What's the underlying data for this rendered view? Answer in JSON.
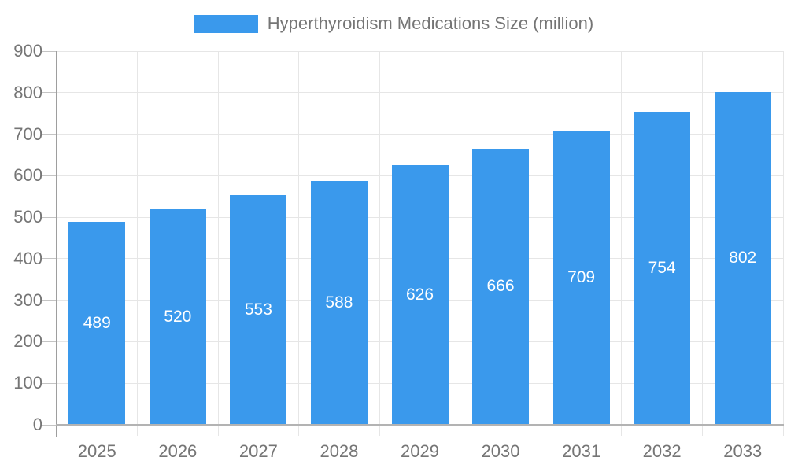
{
  "legend": {
    "label": "Hyperthyroidism Medications Size (million)"
  },
  "chart_data": {
    "type": "bar",
    "title": "Hyperthyroidism Medications Size (million)",
    "categories": [
      "2025",
      "2026",
      "2027",
      "2028",
      "2029",
      "2030",
      "2031",
      "2032",
      "2033"
    ],
    "values": [
      489,
      520,
      553,
      588,
      626,
      666,
      709,
      754,
      802
    ],
    "xlabel": "",
    "ylabel": "",
    "ylim": [
      0,
      900
    ],
    "ytick_step": 100,
    "yticks": [
      "0",
      "100",
      "200",
      "300",
      "400",
      "500",
      "600",
      "700",
      "800",
      "900"
    ],
    "grid": true,
    "legend_position": "top-center",
    "value_labels": "inside-center-white"
  },
  "colors": {
    "bar": "#3a99ec",
    "grid": "#e6e6e6",
    "tick": "#c4c4c4",
    "y_axis_line": "#9e9e9e",
    "x_axis_line": "#b3b3b3",
    "axis_text": "#757575",
    "value_text": "#ffffff",
    "background": "#ffffff"
  }
}
